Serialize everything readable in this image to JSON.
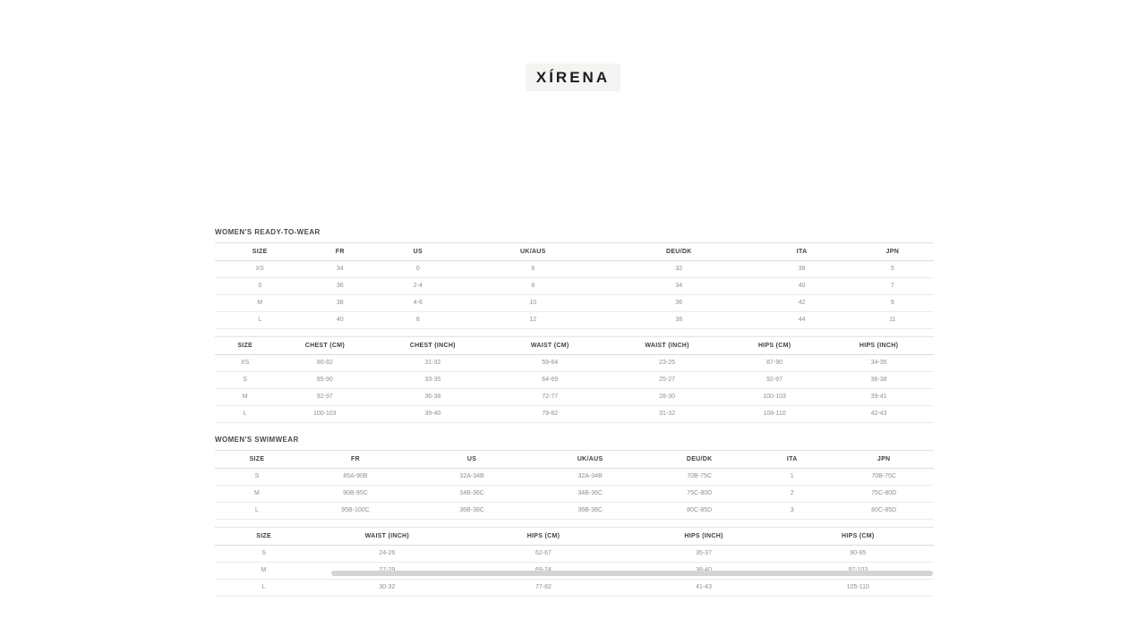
{
  "logo": {
    "text": "XÍRENA"
  },
  "sections": [
    {
      "title": "WOMEN'S READY-TO-WEAR",
      "tables": [
        {
          "headers": [
            "SIZE",
            "FR",
            "US",
            "UK/AUS",
            "DEU/DK",
            "ITA",
            "JPN"
          ],
          "rows": [
            [
              "XS",
              "34",
              "0",
              "6",
              "32",
              "38",
              "5"
            ],
            [
              "S",
              "36",
              "2-4",
              "8",
              "34",
              "40",
              "7"
            ],
            [
              "M",
              "38",
              "4-6",
              "10",
              "36",
              "42",
              "9"
            ],
            [
              "L",
              "40",
              "8",
              "12",
              "38",
              "44",
              "11"
            ]
          ]
        },
        {
          "headers": [
            "SIZE",
            "CHEST (CM)",
            "CHEST (INCH)",
            "WAIST (CM)",
            "WAIST (INCH)",
            "HIPS (CM)",
            "HIPS (INCH)"
          ],
          "rows": [
            [
              "XS",
              "80-82",
              "31-32",
              "59-64",
              "23-25",
              "87-90",
              "34-35"
            ],
            [
              "S",
              "85-90",
              "33-35",
              "64-69",
              "25-27",
              "92-97",
              "36-38"
            ],
            [
              "M",
              "92-97",
              "36-38",
              "72-77",
              "28-30",
              "100-103",
              "39-41"
            ],
            [
              "L",
              "100-103",
              "39-40",
              "79-82",
              "31-32",
              "108-110",
              "42-43"
            ]
          ]
        }
      ]
    },
    {
      "title": "WOMEN'S SWIMWEAR",
      "tables": [
        {
          "headers": [
            "SIZE",
            "FR",
            "US",
            "UK/AUS",
            "DEU/DK",
            "ITA",
            "JPN"
          ],
          "rows": [
            [
              "S",
              "85A-90B",
              "32A-34B",
              "32A-34B",
              "70B-75C",
              "1",
              "70B-75C"
            ],
            [
              "M",
              "90B-95C",
              "34B-36C",
              "34B-36C",
              "75C-80D",
              "2",
              "75C-80D"
            ],
            [
              "L",
              "95B-100C",
              "36B-38C",
              "36B-38C",
              "80C-85D",
              "3",
              "80C-85D"
            ]
          ]
        },
        {
          "headers": [
            "SIZE",
            "WAIST (INCH)",
            "HIPS (CM)",
            "HIPS (INCH)",
            "HIPS (CM)"
          ],
          "rows": [
            [
              "S",
              "24-26",
              "62-67",
              "35-37",
              "90-95"
            ],
            [
              "M",
              "27-29",
              "69-74",
              "38-40",
              "97-103"
            ],
            [
              "L",
              "30-32",
              "77-82",
              "41-43",
              "105-110"
            ]
          ]
        }
      ]
    }
  ]
}
